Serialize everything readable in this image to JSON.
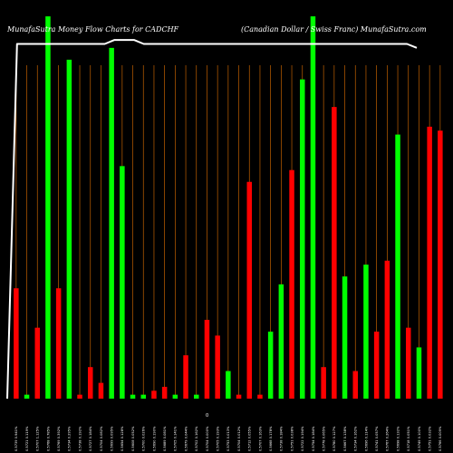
{
  "chart_data": {
    "type": "bar",
    "title": "MunafaSutra  Money Flow  Charts for CADCHF",
    "subtitle": "(Canadian  Dollar / Swiss Franc) MunafaSutra.com",
    "axis_marker": "0",
    "colors": {
      "up": "#00ff00",
      "down": "#ff0000",
      "grid": "#c06000",
      "line": "#ffffff",
      "background": "#000000"
    },
    "ylim": [
      0,
      100
    ],
    "categories": [
      "0.5739 0.941%",
      "0.5721 0.119%",
      "0.5707 1.125%",
      "0.5768 0.785%",
      "0.5769 0.392%",
      "0.5734 0.295%",
      "0.5738 0.192%",
      "0.5727 0.184%",
      "0.5704 0.082%",
      "0.5699 0.095%",
      "0.5654 0.128%",
      "0.5608 0.052%",
      "0.5700 0.026%",
      "0.5690 0.190%",
      "0.5689 0.081%",
      "0.5705 0.141%",
      "0.5679 0.044%",
      "0.5702 0.162%",
      "0.5704 0.000%",
      "0.5705 0.193%",
      "0.5753 0.013%",
      "0.5704 0.012%",
      "0.5712 0.055%",
      "0.5707 0.163%",
      "0.5668 0.178%",
      "0.5738 0.184%",
      "0.5751 0.038%",
      "0.5722 0.194%",
      "0.5754 0.184%",
      "0.5778 0.065%",
      "0.5780 0.127%",
      "0.5667 0.138%",
      "0.5734 0.162%",
      "0.5696 0.114%",
      "0.5741 0.057%",
      "0.5767 0.264%",
      "0.5698 0.132%",
      "0.5718 0.051%",
      "0.5749 0.100%",
      "0.5751 0.032%",
      "0.5766 0.009%"
    ],
    "values": [
      28,
      1,
      18,
      97,
      28,
      86,
      1,
      8,
      4,
      89,
      59,
      1,
      1,
      2,
      3,
      1,
      11,
      1,
      20,
      16,
      7,
      1,
      55,
      1,
      17,
      29,
      58,
      81,
      97,
      8,
      74,
      31,
      7,
      34,
      17,
      35,
      67,
      18,
      13,
      69,
      68
    ],
    "directions": [
      "down",
      "up",
      "down",
      "up",
      "down",
      "up",
      "down",
      "down",
      "down",
      "up",
      "up",
      "up",
      "up",
      "down",
      "down",
      "up",
      "down",
      "up",
      "down",
      "down",
      "up",
      "down",
      "down",
      "down",
      "up",
      "up",
      "down",
      "up",
      "up",
      "down",
      "down",
      "up",
      "down",
      "up",
      "down",
      "down",
      "up",
      "down",
      "up",
      "down",
      "down"
    ],
    "line_values": [
      0,
      90,
      90,
      90,
      90,
      90,
      90,
      90,
      90,
      90,
      90,
      91,
      91,
      91,
      90,
      90,
      90,
      90,
      90,
      90,
      90,
      90,
      90,
      90,
      90,
      90,
      90,
      90,
      90,
      90,
      90,
      90,
      90,
      90,
      90,
      90,
      90,
      90,
      90,
      90,
      90,
      90,
      89
    ]
  }
}
